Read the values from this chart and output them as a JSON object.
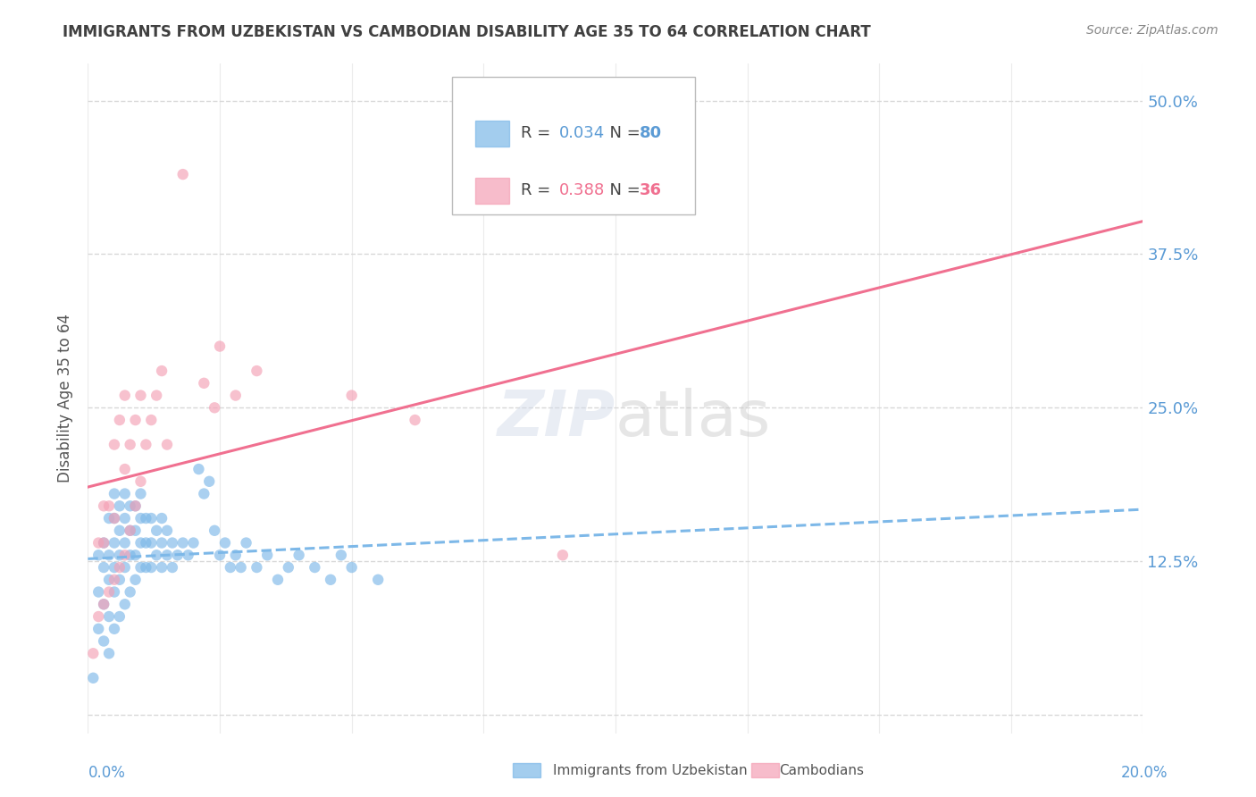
{
  "title": "IMMIGRANTS FROM UZBEKISTAN VS CAMBODIAN DISABILITY AGE 35 TO 64 CORRELATION CHART",
  "source": "Source: ZipAtlas.com",
  "ylabel": "Disability Age 35 to 64",
  "yticks": [
    0.0,
    0.125,
    0.25,
    0.375,
    0.5
  ],
  "ytick_labels": [
    "",
    "12.5%",
    "25.0%",
    "37.5%",
    "50.0%"
  ],
  "xlim": [
    0.0,
    0.2
  ],
  "ylim": [
    -0.015,
    0.53
  ],
  "uzbek_color": "#7db8e8",
  "cambodian_color": "#f4a0b5",
  "uzbek_trend_color": "#7db8e8",
  "cambodian_trend_color": "#f07090",
  "background_color": "#ffffff",
  "grid_color": "#d8d8d8",
  "title_color": "#404040",
  "axis_label_color": "#5b9bd5",
  "uzbek_R": "0.034",
  "uzbek_N": "80",
  "cambodian_R": "0.388",
  "cambodian_N": "36",
  "legend_label_uzbek": "Immigrants from Uzbekistan",
  "legend_label_cambodian": "Cambodians",
  "uzbek_x": [
    0.001,
    0.002,
    0.002,
    0.002,
    0.003,
    0.003,
    0.003,
    0.003,
    0.004,
    0.004,
    0.004,
    0.004,
    0.004,
    0.005,
    0.005,
    0.005,
    0.005,
    0.005,
    0.005,
    0.006,
    0.006,
    0.006,
    0.006,
    0.006,
    0.007,
    0.007,
    0.007,
    0.007,
    0.007,
    0.008,
    0.008,
    0.008,
    0.008,
    0.009,
    0.009,
    0.009,
    0.009,
    0.01,
    0.01,
    0.01,
    0.01,
    0.011,
    0.011,
    0.011,
    0.012,
    0.012,
    0.012,
    0.013,
    0.013,
    0.014,
    0.014,
    0.014,
    0.015,
    0.015,
    0.016,
    0.016,
    0.017,
    0.018,
    0.019,
    0.02,
    0.021,
    0.022,
    0.023,
    0.024,
    0.025,
    0.026,
    0.027,
    0.028,
    0.029,
    0.03,
    0.032,
    0.034,
    0.036,
    0.038,
    0.04,
    0.043,
    0.046,
    0.05,
    0.055,
    0.048
  ],
  "uzbek_y": [
    0.03,
    0.07,
    0.1,
    0.13,
    0.06,
    0.09,
    0.12,
    0.14,
    0.05,
    0.08,
    0.11,
    0.13,
    0.16,
    0.07,
    0.1,
    0.12,
    0.14,
    0.16,
    0.18,
    0.08,
    0.11,
    0.13,
    0.15,
    0.17,
    0.09,
    0.12,
    0.14,
    0.16,
    0.18,
    0.1,
    0.13,
    0.15,
    0.17,
    0.11,
    0.13,
    0.15,
    0.17,
    0.12,
    0.14,
    0.16,
    0.18,
    0.12,
    0.14,
    0.16,
    0.12,
    0.14,
    0.16,
    0.13,
    0.15,
    0.12,
    0.14,
    0.16,
    0.13,
    0.15,
    0.12,
    0.14,
    0.13,
    0.14,
    0.13,
    0.14,
    0.2,
    0.18,
    0.19,
    0.15,
    0.13,
    0.14,
    0.12,
    0.13,
    0.12,
    0.14,
    0.12,
    0.13,
    0.11,
    0.12,
    0.13,
    0.12,
    0.11,
    0.12,
    0.11,
    0.13
  ],
  "cambodian_x": [
    0.001,
    0.002,
    0.002,
    0.003,
    0.003,
    0.003,
    0.004,
    0.004,
    0.005,
    0.005,
    0.005,
    0.006,
    0.006,
    0.007,
    0.007,
    0.007,
    0.008,
    0.008,
    0.009,
    0.009,
    0.01,
    0.01,
    0.011,
    0.012,
    0.013,
    0.014,
    0.015,
    0.018,
    0.022,
    0.024,
    0.025,
    0.028,
    0.032,
    0.09,
    0.062,
    0.05
  ],
  "cambodian_y": [
    0.05,
    0.08,
    0.14,
    0.09,
    0.14,
    0.17,
    0.1,
    0.17,
    0.11,
    0.16,
    0.22,
    0.12,
    0.24,
    0.13,
    0.2,
    0.26,
    0.15,
    0.22,
    0.17,
    0.24,
    0.19,
    0.26,
    0.22,
    0.24,
    0.26,
    0.28,
    0.22,
    0.44,
    0.27,
    0.25,
    0.3,
    0.26,
    0.28,
    0.13,
    0.24,
    0.26
  ],
  "marker_size": 80
}
